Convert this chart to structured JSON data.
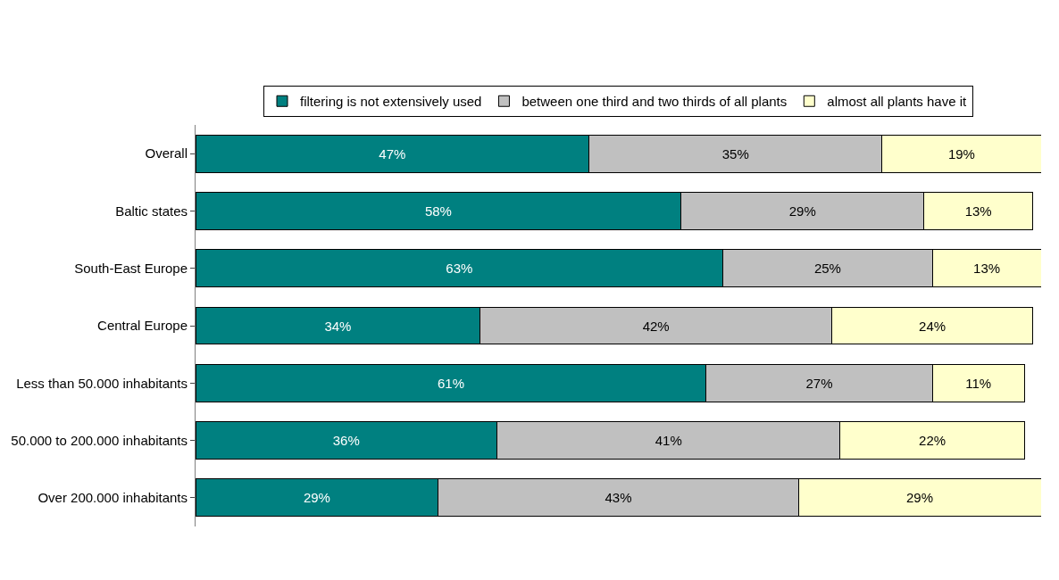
{
  "chart_data": {
    "type": "bar",
    "orientation": "horizontal",
    "stacked": true,
    "legend": "top",
    "tick_labels": "y",
    "categories": [
      "Overall",
      "Baltic states",
      "South-East Europe",
      "Central Europe",
      "Less than 50.000 inhabitants",
      "50.000 to 200.000 inhabitants",
      "Over 200.000 inhabitants"
    ],
    "series": [
      {
        "name": "filtering is not extensively used",
        "color": "#008080",
        "values": [
          47,
          58,
          63,
          34,
          61,
          36,
          29
        ],
        "value_labels": [
          "47%",
          "58%",
          "63%",
          "34%",
          "61%",
          "36%",
          "29%"
        ]
      },
      {
        "name": "between one third and two thirds of all plants",
        "color": "#c0c0c0",
        "values": [
          35,
          29,
          25,
          42,
          27,
          41,
          43
        ],
        "value_labels": [
          "35%",
          "29%",
          "25%",
          "42%",
          "27%",
          "41%",
          "43%"
        ]
      },
      {
        "name": "almost all plants have it",
        "color": "#ffffcc",
        "values": [
          19,
          13,
          13,
          24,
          11,
          22,
          29
        ],
        "value_labels": [
          "19%",
          "13%",
          "13%",
          "24%",
          "11%",
          "22%",
          "29%"
        ]
      }
    ]
  }
}
